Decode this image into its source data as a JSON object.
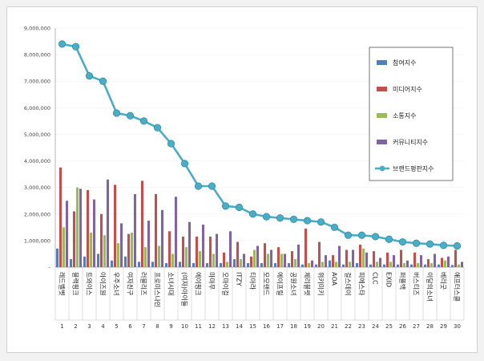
{
  "chart_data": {
    "type": "bar",
    "ylim": [
      0,
      9000000
    ],
    "yticks": [
      "-",
      "1,000,000",
      "2,000,000",
      "3,000,000",
      "4,000,000",
      "5,000,000",
      "6,000,000",
      "7,000,000",
      "8,000,000",
      "9,000,000"
    ],
    "categories": [
      "레드벨벳",
      "블랙핑크",
      "트와이스",
      "아이즈원",
      "우주소녀",
      "여자친구",
      "러블리즈",
      "프로미스나인",
      "소녀시대",
      "(여자)아이들",
      "에이핑크",
      "마마무",
      "오마이걸",
      "ITZY",
      "티아라",
      "모모랜드",
      "에이프릴",
      "공원소녀",
      "체리블렛",
      "위키미키",
      "AOA",
      "걸스데이",
      "피에스타",
      "CLC",
      "EXID",
      "퍼플백",
      "버스티즈",
      "이달의소녀",
      "베리굿",
      "애프터스쿨"
    ],
    "index_labels": [
      "1",
      "2",
      "3",
      "4",
      "5",
      "6",
      "7",
      "8",
      "9",
      "10",
      "11",
      "12",
      "13",
      "14",
      "15",
      "16",
      "17",
      "18",
      "19",
      "20",
      "21",
      "22",
      "23",
      "24",
      "25",
      "26",
      "27",
      "28",
      "29",
      "30"
    ],
    "series": [
      {
        "name": "참여지수",
        "kind": "bar",
        "color": "#4f7fbd",
        "values": [
          700000,
          300000,
          400000,
          500000,
          250000,
          400000,
          200000,
          200000,
          150000,
          200000,
          150000,
          150000,
          150000,
          300000,
          150000,
          150000,
          150000,
          150000,
          100000,
          100000,
          250000,
          100000,
          150000,
          100000,
          100000,
          100000,
          100000,
          100000,
          100000,
          80000
        ]
      },
      {
        "name": "미디어지수",
        "kind": "bar",
        "color": "#c0504d",
        "values": [
          3750000,
          2100000,
          2900000,
          2000000,
          3100000,
          1250000,
          3250000,
          2750000,
          1350000,
          1150000,
          1150000,
          1150000,
          550000,
          950000,
          400000,
          900000,
          750000,
          600000,
          1450000,
          950000,
          450000,
          650000,
          850000,
          600000,
          550000,
          650000,
          550000,
          300000,
          350000,
          650000
        ]
      },
      {
        "name": "소통지수",
        "kind": "bar",
        "color": "#9bbb59",
        "values": [
          1500000,
          3000000,
          1300000,
          1200000,
          900000,
          1300000,
          750000,
          800000,
          500000,
          750000,
          600000,
          500000,
          200000,
          300000,
          650000,
          500000,
          500000,
          300000,
          150000,
          200000,
          200000,
          200000,
          700000,
          200000,
          200000,
          150000,
          150000,
          150000,
          250000,
          100000
        ]
      },
      {
        "name": "커뮤니티지수",
        "kind": "bar",
        "color": "#8064a2",
        "values": [
          2500000,
          2950000,
          2550000,
          3300000,
          1650000,
          2750000,
          1750000,
          2150000,
          2650000,
          1700000,
          1600000,
          1250000,
          1350000,
          500000,
          800000,
          650000,
          500000,
          850000,
          250000,
          450000,
          800000,
          650000,
          550000,
          350000,
          450000,
          250000,
          450000,
          500000,
          400000,
          200000
        ]
      },
      {
        "name": "브랜드평판지수",
        "kind": "line",
        "color": "#4bacc6",
        "values": [
          8400000,
          8300000,
          7200000,
          7000000,
          5800000,
          5700000,
          5500000,
          5250000,
          4650000,
          3900000,
          3050000,
          3050000,
          2300000,
          2250000,
          2000000,
          1900000,
          1850000,
          1800000,
          1750000,
          1700000,
          1500000,
          1200000,
          1200000,
          1150000,
          1050000,
          950000,
          900000,
          870000,
          820000,
          800000
        ]
      }
    ]
  }
}
